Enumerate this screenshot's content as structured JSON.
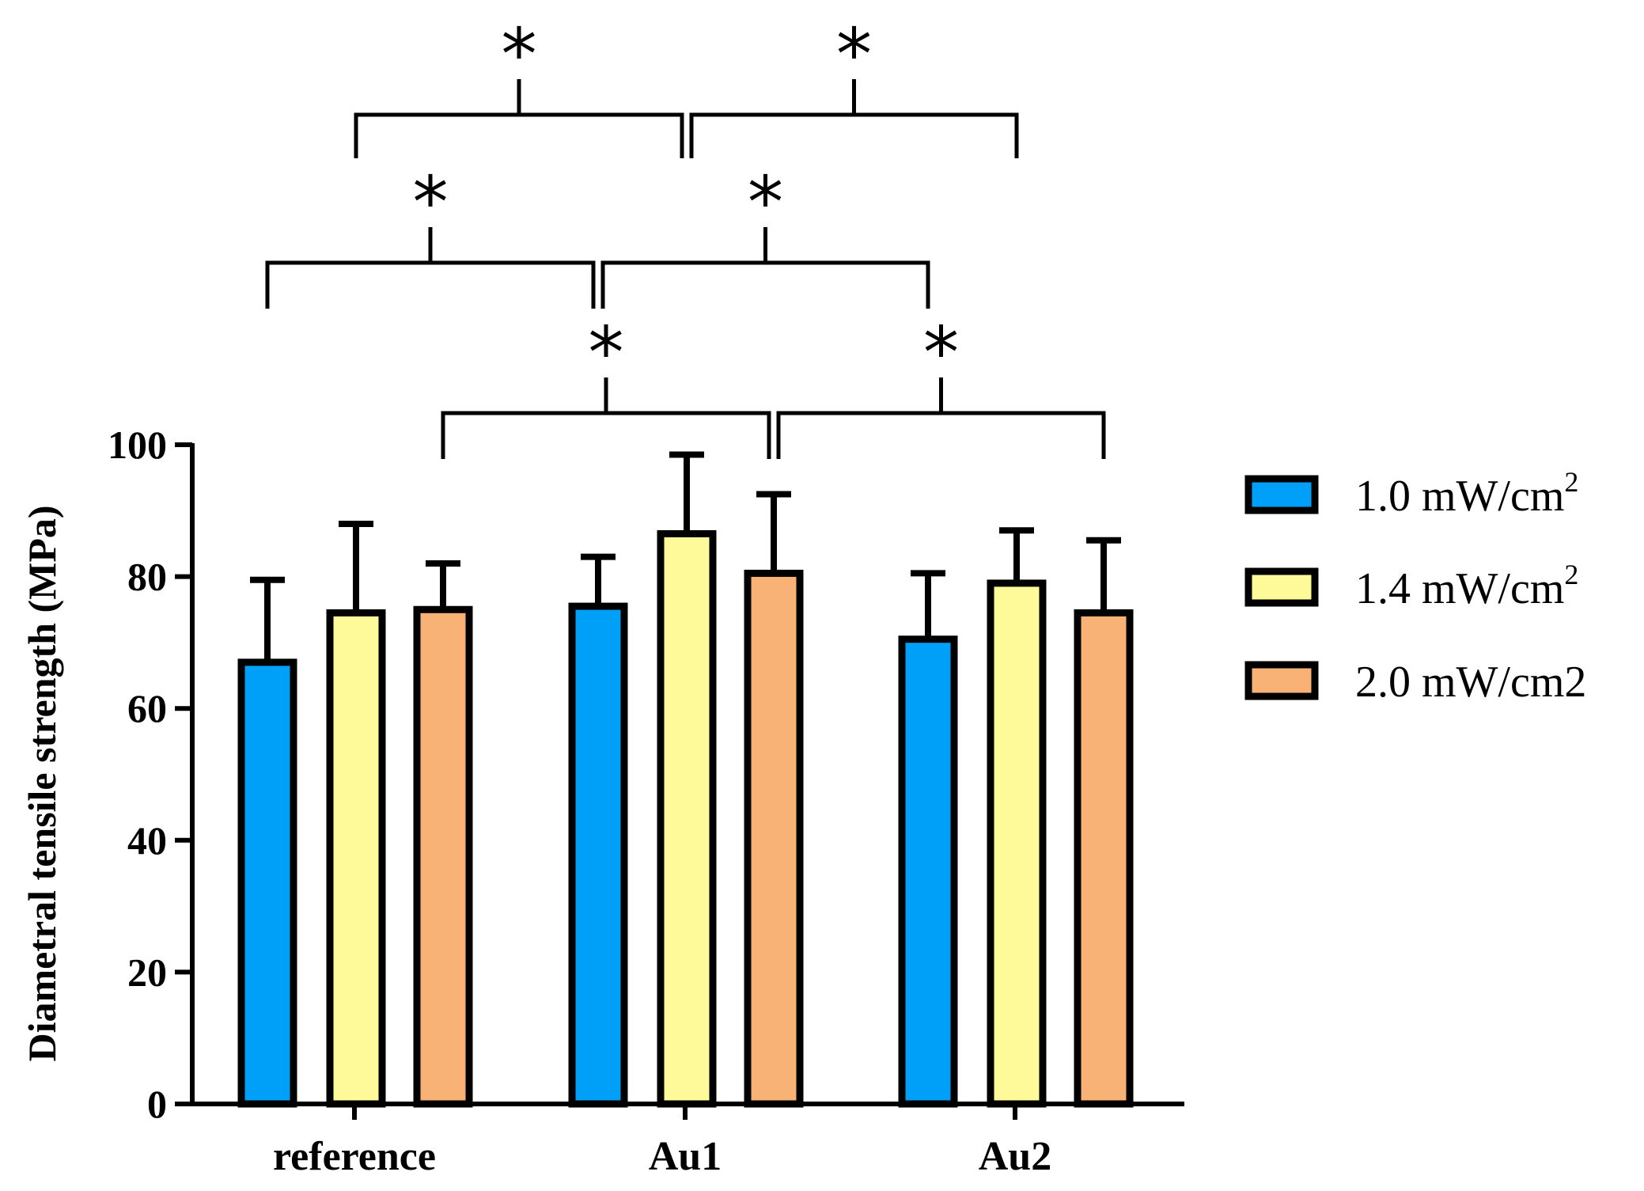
{
  "chart_data": {
    "type": "bar",
    "title": "",
    "xlabel": "",
    "ylabel": "Diametral tensile strength (MPa)",
    "ylim": [
      0,
      100
    ],
    "yticks": [
      "0",
      "20",
      "40",
      "60",
      "80",
      "100"
    ],
    "categories": [
      "reference",
      "Au1",
      "Au2"
    ],
    "series": [
      {
        "name": "1.0 mW/cm",
        "sup": "2",
        "color": "#00a0f8",
        "values": [
          67,
          75.5,
          70.5
        ],
        "errors": [
          12.5,
          7.5,
          10
        ]
      },
      {
        "name": "1.4 mW/cm",
        "sup": "2",
        "color": "#fefa9a",
        "values": [
          74.5,
          86.5,
          79
        ],
        "errors": [
          13.5,
          12,
          8
        ]
      },
      {
        "name": "2.0 mW/cm2",
        "sup": "",
        "color": "#f8b276",
        "values": [
          75,
          80.5,
          74.5
        ],
        "errors": [
          7,
          12,
          11
        ]
      }
    ],
    "significance": [
      {
        "label": "*",
        "from": "reference / 1.4 mW/cm2",
        "to": "Au1 / 1.4 mW/cm2"
      },
      {
        "label": "*",
        "from": "Au1 / 1.4 mW/cm2",
        "to": "Au2 / 1.4 mW/cm2"
      },
      {
        "label": "*",
        "from": "reference / 1.0 mW/cm2",
        "to": "Au1 / 1.0 mW/cm2"
      },
      {
        "label": "*",
        "from": "Au1 / 1.0 mW/cm2",
        "to": "Au2 / 1.0 mW/cm2"
      },
      {
        "label": "*",
        "from": "reference / 2.0 mW/cm2",
        "to": "Au1 / 2.0 mW/cm2"
      },
      {
        "label": "*",
        "from": "Au1 / 2.0 mW/cm2",
        "to": "Au2 / 2.0 mW/cm2"
      }
    ],
    "legend_position": "right"
  }
}
